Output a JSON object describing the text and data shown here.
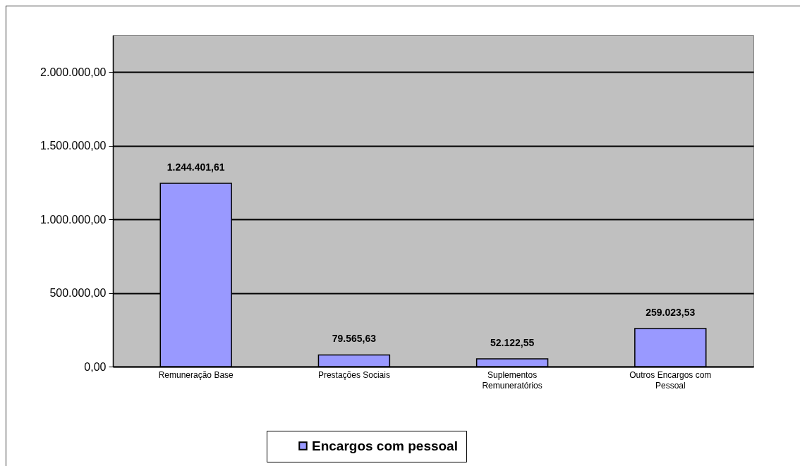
{
  "chart_data": {
    "type": "bar",
    "categories": [
      "Remuneração Base",
      "Prestações Sociais",
      "Suplementos Remuneratórios",
      "Outros Encargos com Pessoal"
    ],
    "series": [
      {
        "name": "Encargos com pessoal",
        "color": "#9999ff",
        "values": [
          1244401.61,
          79565.63,
          52122.55,
          259023.53
        ],
        "value_labels": [
          "1.244.401,61",
          "79.565,63",
          "52.122,55",
          "259.023,53"
        ]
      }
    ],
    "ylim": [
      0,
      2250000
    ],
    "yticks": [
      {
        "value": 0,
        "label": "0,00"
      },
      {
        "value": 500000,
        "label": "500.000,00"
      },
      {
        "value": 1000000,
        "label": "1.000.000,00"
      },
      {
        "value": 1500000,
        "label": "1.500.000,00"
      },
      {
        "value": 2000000,
        "label": "2.000.000,00"
      }
    ],
    "grid": "y",
    "legend": "bottom"
  }
}
